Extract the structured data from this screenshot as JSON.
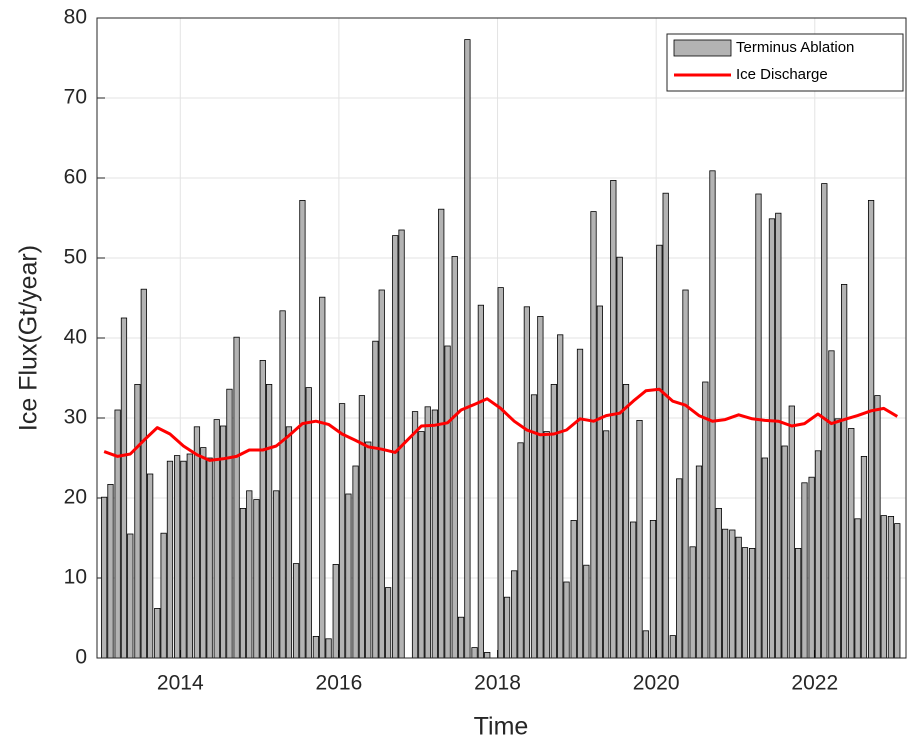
{
  "chart_data": {
    "type": "bar+line",
    "x_label": "Time",
    "y_label": "Ice Flux(Gt/year)",
    "xlim": [
      2012.95,
      2023.15
    ],
    "xticks": [
      2014,
      2016,
      2018,
      2020,
      2022
    ],
    "ylim": [
      0,
      80
    ],
    "yticks": [
      0,
      10,
      20,
      30,
      40,
      50,
      60,
      70,
      80
    ],
    "grid": true,
    "legend": "upper right",
    "series": [
      {
        "name": "Terminus Ablation",
        "type": "bar",
        "color": "#b3b3b3",
        "x": [
          2013.04,
          2013.12,
          2013.21,
          2013.29,
          2013.37,
          2013.46,
          2013.54,
          2013.62,
          2013.71,
          2013.79,
          2013.87,
          2013.96,
          2014.04,
          2014.12,
          2014.21,
          2014.29,
          2014.37,
          2014.46,
          2014.54,
          2014.62,
          2014.71,
          2014.79,
          2014.87,
          2014.96,
          2015.04,
          2015.12,
          2015.21,
          2015.29,
          2015.37,
          2015.46,
          2015.54,
          2015.62,
          2015.71,
          2015.79,
          2015.87,
          2015.96,
          2016.04,
          2016.12,
          2016.21,
          2016.29,
          2016.37,
          2016.46,
          2016.54,
          2016.62,
          2016.71,
          2016.79,
          2016.96,
          2017.04,
          2017.12,
          2017.21,
          2017.29,
          2017.37,
          2017.46,
          2017.54,
          2017.62,
          2017.71,
          2017.79,
          2017.87,
          2018.04,
          2018.12,
          2018.21,
          2018.29,
          2018.37,
          2018.46,
          2018.54,
          2018.62,
          2018.71,
          2018.79,
          2018.87,
          2018.96,
          2019.04,
          2019.12,
          2019.21,
          2019.29,
          2019.37,
          2019.46,
          2019.54,
          2019.62,
          2019.71,
          2019.79,
          2019.87,
          2019.96,
          2020.04,
          2020.12,
          2020.21,
          2020.29,
          2020.37,
          2020.46,
          2020.54,
          2020.62,
          2020.71,
          2020.79,
          2020.87,
          2020.96,
          2021.04,
          2021.12,
          2021.21,
          2021.29,
          2021.37,
          2021.46,
          2021.54,
          2021.62,
          2021.71,
          2021.79,
          2021.87,
          2021.96,
          2022.04,
          2022.12,
          2022.21,
          2022.29,
          2022.37,
          2022.46,
          2022.54,
          2022.62,
          2022.71,
          2022.79,
          2022.87,
          2022.96,
          2023.04
        ],
        "values": [
          20.1,
          21.7,
          31.0,
          42.5,
          15.5,
          34.2,
          46.1,
          23.0,
          6.2,
          15.6,
          24.6,
          25.3,
          24.6,
          25.5,
          28.9,
          26.3,
          25.0,
          29.8,
          29.0,
          33.6,
          40.1,
          18.7,
          20.9,
          19.8,
          37.2,
          34.2,
          20.9,
          43.4,
          28.9,
          11.8,
          57.2,
          33.8,
          2.7,
          45.1,
          2.4,
          11.7,
          31.8,
          20.5,
          24.0,
          32.8,
          27.0,
          39.6,
          46.0,
          8.8,
          52.8,
          53.5,
          30.8,
          28.3,
          31.4,
          31.0,
          56.1,
          39.0,
          50.2,
          5.1,
          77.3,
          1.3,
          44.1,
          0.7,
          46.3,
          7.6,
          10.9,
          26.9,
          43.9,
          32.9,
          42.7,
          28.3,
          34.2,
          40.4,
          9.5,
          17.2,
          38.6,
          11.6,
          55.8,
          44.0,
          28.4,
          59.7,
          50.1,
          34.2,
          17.0,
          29.7,
          3.4,
          17.2,
          51.6,
          58.1,
          2.8,
          22.4,
          46.0,
          13.9,
          24.0,
          34.5,
          60.9,
          18.7,
          16.1,
          16.0,
          15.1,
          13.8,
          13.7,
          58.0,
          25.0,
          54.9,
          55.6,
          26.5,
          31.5,
          13.7,
          21.9,
          22.6,
          25.9,
          59.3,
          38.4,
          29.9,
          46.7,
          28.7,
          17.4,
          25.2,
          57.2,
          32.8,
          17.8,
          17.7,
          16.8
        ]
      },
      {
        "name": "Ice Discharge",
        "type": "line",
        "color": "#ff0000",
        "x": [
          2013.04,
          2013.21,
          2013.37,
          2013.54,
          2013.71,
          2013.87,
          2014.04,
          2014.21,
          2014.37,
          2014.54,
          2014.71,
          2014.87,
          2015.04,
          2015.21,
          2015.37,
          2015.54,
          2015.71,
          2015.87,
          2016.04,
          2016.21,
          2016.37,
          2016.54,
          2016.71,
          2016.87,
          2017.04,
          2017.21,
          2017.37,
          2017.54,
          2017.71,
          2017.87,
          2018.04,
          2018.21,
          2018.37,
          2018.54,
          2018.71,
          2018.87,
          2019.04,
          2019.21,
          2019.37,
          2019.54,
          2019.71,
          2019.87,
          2020.04,
          2020.21,
          2020.37,
          2020.54,
          2020.71,
          2020.87,
          2021.04,
          2021.21,
          2021.37,
          2021.54,
          2021.71,
          2021.87,
          2022.04,
          2022.21,
          2022.37,
          2022.54,
          2022.71,
          2022.87,
          2023.04
        ],
        "values": [
          25.8,
          25.2,
          25.5,
          27.2,
          28.8,
          28.0,
          26.5,
          25.4,
          24.7,
          24.9,
          25.2,
          26.0,
          26.0,
          26.5,
          27.8,
          29.3,
          29.6,
          29.2,
          28.0,
          27.2,
          26.4,
          26.1,
          25.7,
          27.3,
          29.0,
          29.1,
          29.4,
          31.0,
          31.7,
          32.4,
          31.2,
          29.6,
          28.5,
          27.9,
          28.0,
          28.5,
          29.9,
          29.6,
          30.3,
          30.6,
          32.1,
          33.4,
          33.6,
          32.1,
          31.6,
          30.3,
          29.6,
          29.8,
          30.4,
          29.9,
          29.7,
          29.6,
          29.0,
          29.3,
          30.5,
          29.3,
          29.8,
          30.3,
          30.9,
          31.2,
          30.2
        ]
      }
    ]
  }
}
